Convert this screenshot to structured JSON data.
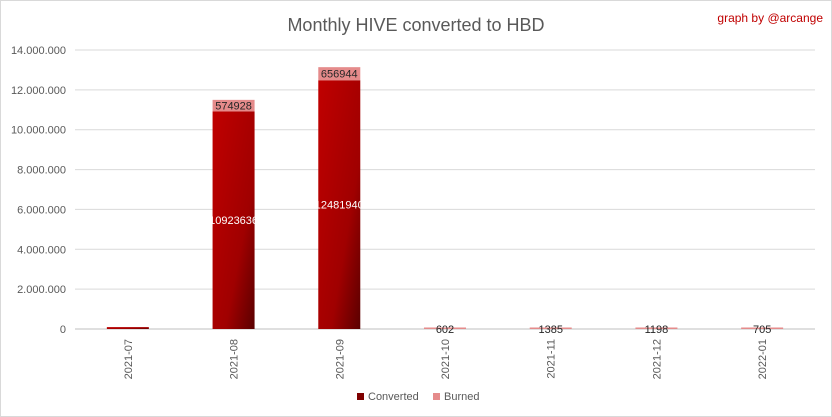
{
  "chart_data": {
    "type": "bar",
    "stacked": true,
    "title": "Monthly HIVE converted to HBD",
    "credit": "graph by @arcange",
    "categories": [
      "2021-07",
      "2021-08",
      "2021-09",
      "2021-10",
      "2021-11",
      "2021-12",
      "2022-01"
    ],
    "series": [
      {
        "name": "Converted",
        "values": [
          95000,
          10923636,
          12481940,
          0,
          0,
          0,
          0
        ],
        "labels": [
          "",
          "10923636",
          "12481940",
          "",
          "",
          "",
          ""
        ],
        "color": "#c00000"
      },
      {
        "name": "Burned",
        "values": [
          0,
          574928,
          656944,
          602,
          1385,
          1198,
          705
        ],
        "labels": [
          "",
          "574928",
          "656944",
          "602",
          "1385",
          "1198",
          "705"
        ],
        "color": "#e58b8b"
      }
    ],
    "ylim": [
      0,
      14000000
    ],
    "yticks": [
      "0",
      "2.000.000",
      "4.000.000",
      "6.000.000",
      "8.000.000",
      "10.000.000",
      "12.000.000",
      "14.000.000"
    ],
    "grid": true,
    "legend": "bottom"
  }
}
